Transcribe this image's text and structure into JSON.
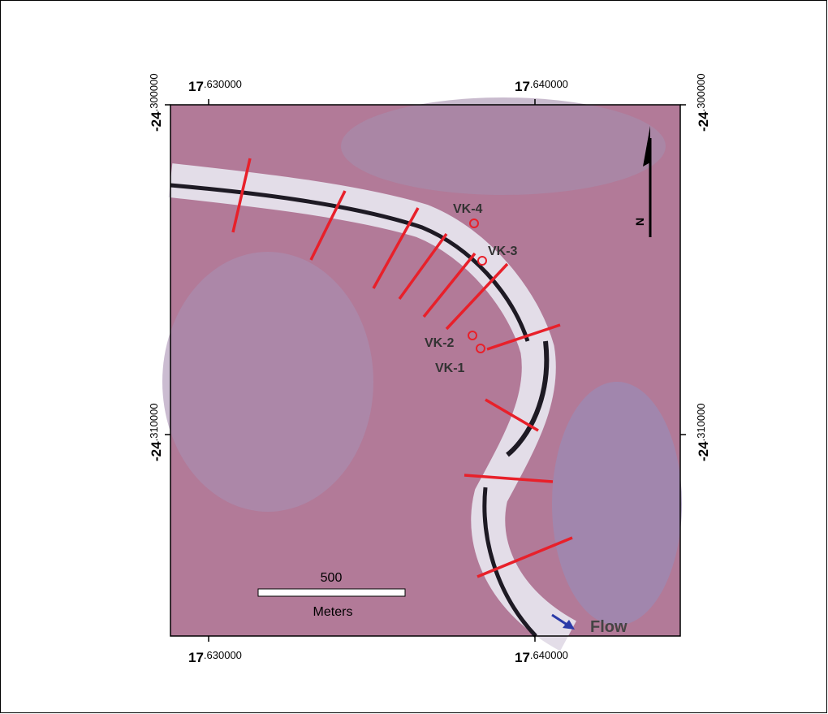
{
  "map": {
    "x_labels": [
      {
        "whole": "17",
        "fraction": ".630000"
      },
      {
        "whole": "17",
        "fraction": ".640000"
      }
    ],
    "y_labels": [
      {
        "whole": "-24",
        "fraction": ".300000"
      },
      {
        "whole": "-24",
        "fraction": ".310000"
      }
    ],
    "sites": [
      "VK-4",
      "VK-3",
      "VK-2",
      "VK-1"
    ],
    "scale_bar": {
      "value": "500",
      "unit": "Meters"
    },
    "north": "N",
    "flow": "Flow"
  }
}
